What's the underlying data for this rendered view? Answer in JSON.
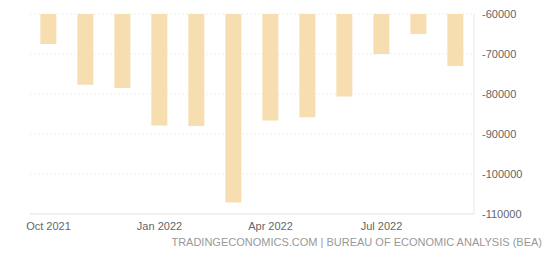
{
  "chart_data": {
    "type": "bar",
    "source": "TRADINGECONOMICS.COM | BUREAU OF ECONOMIC ANALYSIS (BEA)",
    "categories": [
      "Oct 2021",
      null,
      null,
      "Jan 2022",
      null,
      null,
      "Apr 2022",
      null,
      null,
      "Jul 2022",
      null,
      null
    ],
    "values": [
      -67500,
      -77700,
      -78500,
      -87900,
      -88000,
      -107100,
      -86600,
      -85800,
      -80600,
      -70000,
      -65000,
      -73000
    ],
    "color": "#f6deb0",
    "ylim": [
      -110000,
      -60000
    ],
    "yticks": [
      -60000,
      -70000,
      -80000,
      -90000,
      -100000,
      -110000
    ],
    "grid": true
  }
}
